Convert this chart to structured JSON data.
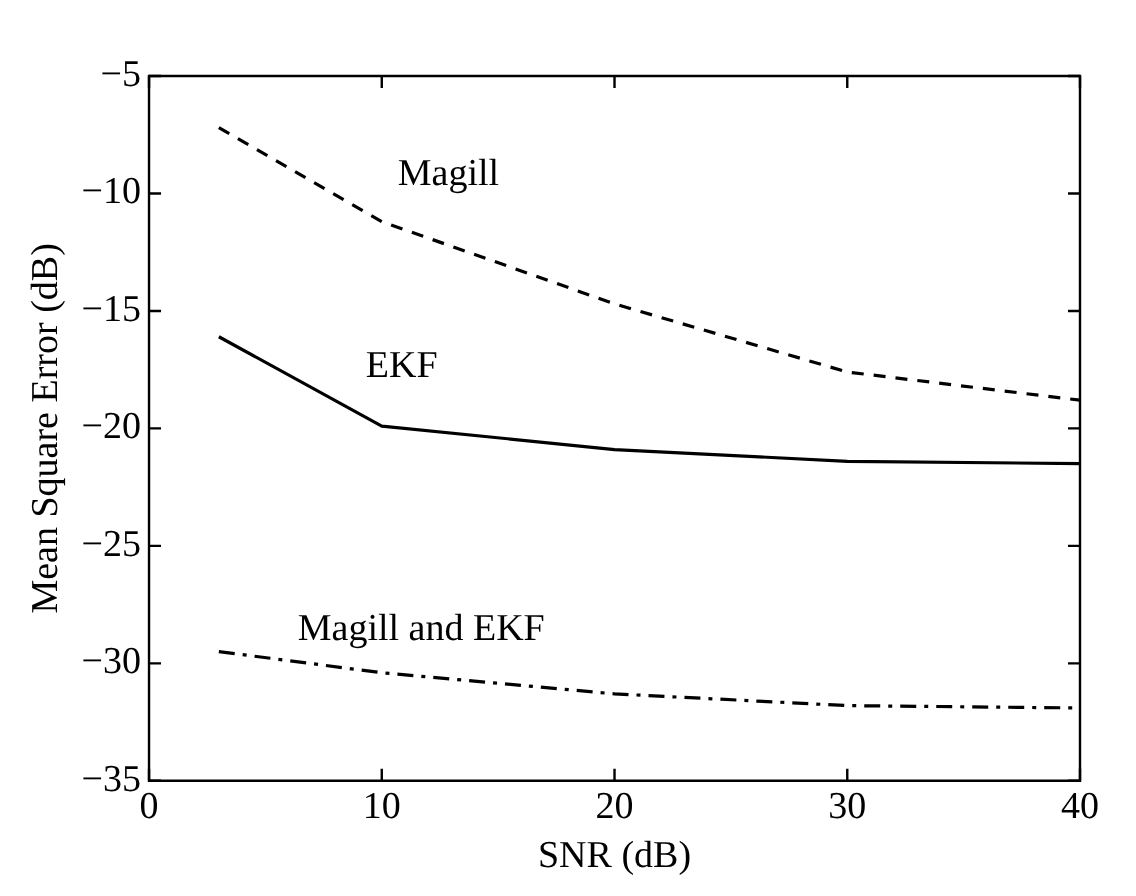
{
  "chart_data": {
    "type": "line",
    "xlabel": "SNR (dB)",
    "ylabel": "Mean Square Error (dB)",
    "x": [
      3,
      10,
      20,
      30,
      40
    ],
    "series": [
      {
        "name": "Magill",
        "color": "#000000",
        "line_style": "dashed",
        "values": [
          -7.2,
          -11.2,
          -14.7,
          -17.6,
          -18.8
        ]
      },
      {
        "name": "EKF",
        "color": "#000000",
        "line_style": "solid",
        "values": [
          -16.1,
          -19.9,
          -20.9,
          -21.4,
          -21.5
        ]
      },
      {
        "name": "Magill and EKF",
        "color": "#000000",
        "line_style": "dashdot",
        "values": [
          -29.5,
          -30.4,
          -31.3,
          -31.8,
          -31.9
        ]
      }
    ],
    "xlim": [
      0,
      40
    ],
    "xticks": [
      0,
      10,
      20,
      30,
      40
    ],
    "ylim": [
      -35,
      -5
    ],
    "yticks": [
      -35,
      -30,
      -25,
      -20,
      -15,
      -10,
      -5
    ],
    "grid": false,
    "legend": false,
    "marker": "none"
  }
}
